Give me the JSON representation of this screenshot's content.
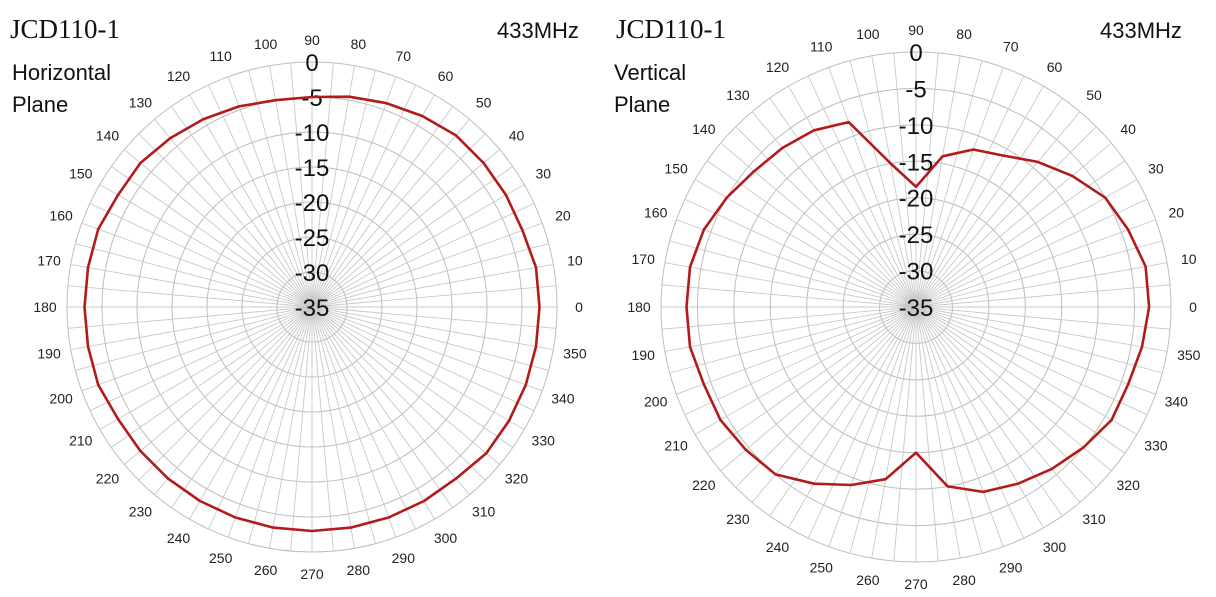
{
  "colors": {
    "trace": "#b31b1b",
    "grid": "#bdbdbd"
  },
  "chart_data": [
    {
      "type": "polar",
      "model": "JCD110-1",
      "frequency": "433MHz",
      "plane_line1": "Horizontal",
      "plane_line2": "Plane",
      "radial_ticks": [
        "0",
        "-5",
        "-10",
        "-15",
        "-20",
        "-25",
        "-30",
        "-35"
      ],
      "rlim": [
        -35,
        0
      ],
      "angle_ticks": [
        "0",
        "10",
        "20",
        "30",
        "40",
        "50",
        "60",
        "70",
        "80",
        "90",
        "100",
        "110",
        "120",
        "130",
        "140",
        "150",
        "160",
        "170",
        "180",
        "190",
        "200",
        "210",
        "220",
        "230",
        "240",
        "250",
        "260",
        "270",
        "280",
        "290",
        "300",
        "310",
        "320",
        "330",
        "340",
        "350"
      ],
      "theta": [
        0,
        10,
        20,
        30,
        40,
        50,
        60,
        70,
        80,
        90,
        100,
        110,
        120,
        130,
        140,
        150,
        160,
        170,
        180,
        190,
        200,
        210,
        220,
        230,
        240,
        250,
        260,
        270,
        280,
        290,
        300,
        310,
        320,
        330,
        340,
        350
      ],
      "r": [
        -2.5,
        -2.5,
        -3,
        -3,
        -3,
        -3,
        -3.5,
        -4,
        -4.5,
        -5,
        -5,
        -4.5,
        -4,
        -3.5,
        -3,
        -3,
        -2.5,
        -2.5,
        -2.5,
        -2.5,
        -2.5,
        -3,
        -3,
        -3,
        -3,
        -3,
        -3,
        -3,
        -3,
        -3,
        -3,
        -3,
        -2.5,
        -2.5,
        -2.5,
        -2.5
      ]
    },
    {
      "type": "polar",
      "model": "JCD110-1",
      "frequency": "433MHz",
      "plane_line1": "Vertical",
      "plane_line2": "Plane",
      "radial_ticks": [
        "0",
        "-5",
        "-10",
        "-15",
        "-20",
        "-25",
        "-30",
        "-35"
      ],
      "rlim": [
        -35,
        0
      ],
      "angle_ticks": [
        "0",
        "10",
        "20",
        "30",
        "40",
        "50",
        "60",
        "70",
        "80",
        "90",
        "100",
        "110",
        "120",
        "130",
        "140",
        "150",
        "160",
        "170",
        "180",
        "190",
        "200",
        "210",
        "220",
        "230",
        "240",
        "250",
        "260",
        "270",
        "280",
        "290",
        "300",
        "310",
        "320",
        "330",
        "340",
        "350"
      ],
      "theta": [
        0,
        10,
        20,
        30,
        40,
        50,
        60,
        70,
        80,
        90,
        100,
        110,
        120,
        130,
        140,
        150,
        160,
        170,
        180,
        190,
        200,
        210,
        220,
        230,
        240,
        250,
        260,
        270,
        280,
        290,
        300,
        310,
        320,
        330,
        340,
        350
      ],
      "r": [
        -3,
        -3,
        -4,
        -5,
        -7,
        -9,
        -11,
        -12,
        -14,
        -18.5,
        -15,
        -8,
        -7,
        -6.5,
        -6,
        -5,
        -4,
        -3.5,
        -3.5,
        -3.5,
        -4,
        -4,
        -4.5,
        -5,
        -7,
        -9,
        -11,
        -15,
        -10,
        -8,
        -7,
        -6,
        -5,
        -4,
        -4,
        -3.5
      ]
    }
  ]
}
